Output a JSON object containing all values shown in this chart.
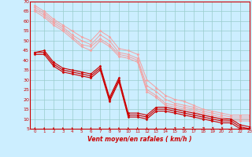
{
  "xlabel": "Vent moyen/en rafales ( km/h )",
  "xlim": [
    -0.5,
    23
  ],
  "ylim": [
    5,
    70
  ],
  "yticks": [
    5,
    10,
    15,
    20,
    25,
    30,
    35,
    40,
    45,
    50,
    55,
    60,
    65,
    70
  ],
  "xticks": [
    0,
    1,
    2,
    3,
    4,
    5,
    6,
    7,
    8,
    9,
    10,
    11,
    12,
    13,
    14,
    15,
    16,
    17,
    18,
    19,
    20,
    21,
    22,
    23
  ],
  "bg_color": "#cceeff",
  "grid_color": "#99cccc",
  "line_color_light": "#f4a0a0",
  "line_color_dark": "#cc0000",
  "lines_light": [
    [
      68,
      65,
      61,
      58,
      55,
      52,
      50,
      55,
      52,
      46,
      45,
      43,
      30,
      26,
      22,
      20,
      19,
      17,
      15,
      14,
      13,
      12,
      12,
      12
    ],
    [
      67,
      64,
      60,
      57,
      53,
      50,
      48,
      53,
      50,
      44,
      43,
      41,
      27,
      24,
      20,
      18,
      17,
      16,
      14,
      13,
      12,
      11,
      11,
      11
    ],
    [
      66,
      63,
      59,
      56,
      52,
      48,
      47,
      51,
      48,
      43,
      42,
      40,
      25,
      22,
      18,
      17,
      16,
      15,
      13,
      12,
      11,
      10,
      10,
      10
    ],
    [
      65,
      62,
      58,
      55,
      51,
      47,
      45,
      50,
      47,
      42,
      41,
      39,
      24,
      21,
      17,
      16,
      15,
      14,
      12,
      11,
      10,
      9,
      9,
      9
    ]
  ],
  "lines_dark": [
    [
      44,
      45,
      39,
      36,
      35,
      34,
      33,
      37,
      21,
      31,
      13,
      13,
      12,
      16,
      16,
      15,
      14,
      13,
      12,
      11,
      10,
      10,
      7,
      6
    ],
    [
      44,
      44,
      38,
      35,
      34,
      33,
      32,
      36,
      20,
      30,
      12,
      12,
      11,
      15,
      15,
      14,
      13,
      12,
      11,
      10,
      9,
      9,
      6,
      5
    ],
    [
      43,
      43,
      37,
      34,
      33,
      32,
      31,
      35,
      19,
      29,
      11,
      11,
      10,
      14,
      14,
      13,
      12,
      11,
      10,
      9,
      8,
      8,
      5,
      5
    ]
  ],
  "arrow_color": "#cc0000",
  "arrows_x": [
    0,
    1,
    2,
    3,
    4,
    5,
    6,
    7,
    8,
    9,
    10,
    11,
    12,
    13,
    14,
    15,
    16,
    17,
    18,
    19,
    20,
    21,
    22,
    23
  ],
  "arrow_angles_deg": [
    0,
    0,
    0,
    0,
    0,
    0,
    0,
    15,
    0,
    0,
    0,
    0,
    0,
    0,
    0,
    -15,
    -30,
    -45,
    -60,
    -70,
    -80,
    -85,
    -100,
    -110
  ]
}
